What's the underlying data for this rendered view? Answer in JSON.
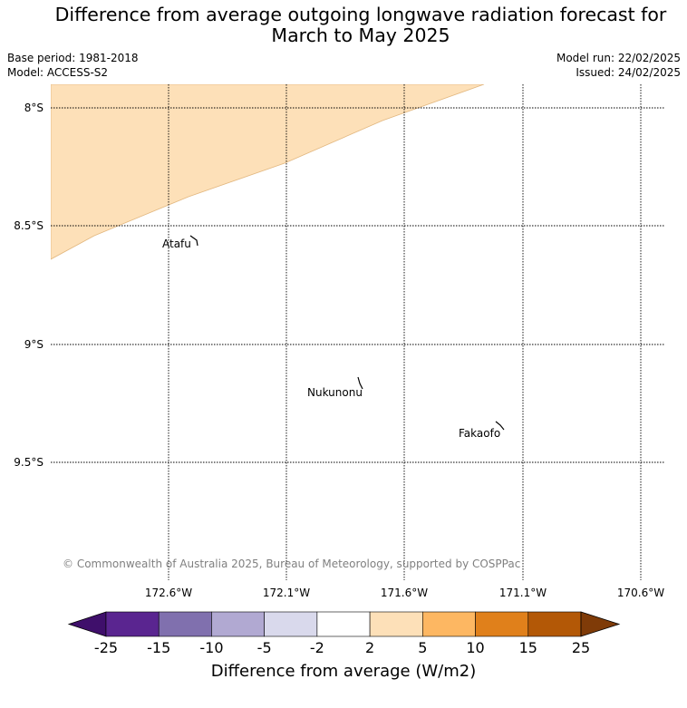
{
  "header": {
    "title_line1": "Difference from average outgoing longwave radiation forecast for",
    "title_line2": "March to May 2025",
    "base_period": "Base period: 1981-2018",
    "model": "Model: ACCESS-S2",
    "model_run": "Model run: 22/02/2025",
    "issued": "Issued: 24/02/2025"
  },
  "map": {
    "lat_labels": [
      "8°S",
      "8.5°S",
      "9°S",
      "9.5°S"
    ],
    "lon_labels": [
      "172.6°W",
      "172.1°W",
      "171.6°W",
      "171.1°W",
      "170.6°W"
    ],
    "places": [
      "Atafu",
      "Nukunonu",
      "Fakaofo"
    ],
    "copyright": "© Commonwealth of Australia 2025, Bureau of Meteorology, supported by COSPPac",
    "shaded_category": "2 to 5",
    "shade_color": "#fde0b8"
  },
  "colorbar": {
    "ticks": [
      "-25",
      "-15",
      "-10",
      "-5",
      "-2",
      "2",
      "5",
      "10",
      "15",
      "25"
    ],
    "colors": [
      "#3f0f6b",
      "#5a2590",
      "#8070ae",
      "#b1a9d2",
      "#d9d9ec",
      "#ffffff",
      "#fde0b8",
      "#fdb762",
      "#e0801b",
      "#b35806",
      "#7f3b08"
    ],
    "label": "Difference from average (W/m2)"
  }
}
